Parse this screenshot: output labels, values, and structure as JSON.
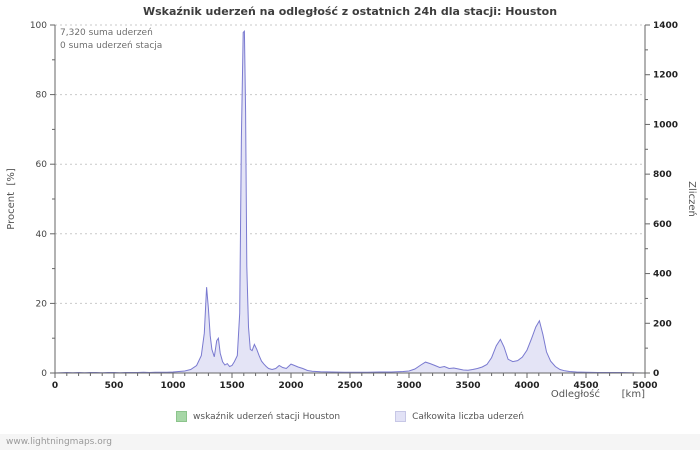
{
  "annotations": {
    "total_line": "7,320 suma uderzeń",
    "station_line": "0 suma uderzeń stacja"
  },
  "footer": {
    "watermark": "www.lightningmaps.org"
  },
  "chart_data": {
    "type": "area",
    "title": "Wskaźnik uderzeń na odległość z ostatnich 24h dla stacji: Houston",
    "xlabel": "Odległość",
    "x_unit": "[km]",
    "ylabel_left": "Procent",
    "ylabel_left_unit": "[%]",
    "ylabel_right": "Zliczeń",
    "x_range": [
      0,
      5000
    ],
    "x_ticks": [
      0,
      500,
      1000,
      1500,
      2000,
      2500,
      3000,
      3500,
      4000,
      4500,
      5000
    ],
    "x_minor_step": 100,
    "y_left_range": [
      0,
      100
    ],
    "y_left_ticks": [
      0,
      20,
      40,
      60,
      80,
      100
    ],
    "y_left_minor_step": 10,
    "y_right_range": [
      0,
      1400
    ],
    "y_right_ticks": [
      0,
      200,
      400,
      600,
      800,
      1000,
      1200,
      1400
    ],
    "y_right_minor_step": 100,
    "grid": "horizontal-dashed",
    "legend_position": "bottom",
    "series": [
      {
        "id": "station",
        "name": "wskaźnik uderzeń stacji Houston",
        "axis": "left",
        "color": "#8fcb8f",
        "swatch": "#a7d7a7",
        "swatch_border": "#8cc48c",
        "points": [
          [
            0,
            0
          ],
          [
            5000,
            0
          ]
        ]
      },
      {
        "id": "total",
        "name": "Całkowita liczba uderzeń",
        "axis": "right",
        "color": "#7a7ad0",
        "fill": "#e4e4f6",
        "swatch": "#e2e2f6",
        "swatch_border": "#c7c7e6",
        "points": [
          [
            0,
            0
          ],
          [
            50,
            1
          ],
          [
            100,
            2
          ],
          [
            150,
            1
          ],
          [
            200,
            2
          ],
          [
            250,
            1
          ],
          [
            300,
            2
          ],
          [
            350,
            2
          ],
          [
            400,
            1
          ],
          [
            450,
            2
          ],
          [
            500,
            2
          ],
          [
            550,
            1
          ],
          [
            600,
            2
          ],
          [
            650,
            2
          ],
          [
            700,
            2
          ],
          [
            750,
            3
          ],
          [
            800,
            2
          ],
          [
            850,
            3
          ],
          [
            900,
            3
          ],
          [
            950,
            3
          ],
          [
            1000,
            4
          ],
          [
            1050,
            6
          ],
          [
            1100,
            8
          ],
          [
            1150,
            14
          ],
          [
            1200,
            30
          ],
          [
            1240,
            70
          ],
          [
            1265,
            160
          ],
          [
            1285,
            345
          ],
          [
            1300,
            260
          ],
          [
            1315,
            150
          ],
          [
            1330,
            95
          ],
          [
            1350,
            65
          ],
          [
            1370,
            130
          ],
          [
            1385,
            140
          ],
          [
            1400,
            80
          ],
          [
            1420,
            45
          ],
          [
            1440,
            32
          ],
          [
            1460,
            38
          ],
          [
            1480,
            26
          ],
          [
            1500,
            30
          ],
          [
            1520,
            46
          ],
          [
            1545,
            70
          ],
          [
            1565,
            240
          ],
          [
            1580,
            950
          ],
          [
            1595,
            1370
          ],
          [
            1605,
            1375
          ],
          [
            1615,
            1050
          ],
          [
            1625,
            430
          ],
          [
            1640,
            185
          ],
          [
            1655,
            95
          ],
          [
            1670,
            90
          ],
          [
            1690,
            115
          ],
          [
            1710,
            95
          ],
          [
            1730,
            70
          ],
          [
            1750,
            48
          ],
          [
            1770,
            36
          ],
          [
            1790,
            26
          ],
          [
            1810,
            18
          ],
          [
            1840,
            14
          ],
          [
            1870,
            18
          ],
          [
            1900,
            30
          ],
          [
            1930,
            22
          ],
          [
            1960,
            18
          ],
          [
            2000,
            36
          ],
          [
            2030,
            30
          ],
          [
            2060,
            24
          ],
          [
            2100,
            18
          ],
          [
            2140,
            10
          ],
          [
            2180,
            7
          ],
          [
            2250,
            5
          ],
          [
            2350,
            4
          ],
          [
            2450,
            3
          ],
          [
            2550,
            3
          ],
          [
            2650,
            3
          ],
          [
            2750,
            4
          ],
          [
            2850,
            4
          ],
          [
            2950,
            6
          ],
          [
            3000,
            8
          ],
          [
            3050,
            16
          ],
          [
            3100,
            32
          ],
          [
            3140,
            44
          ],
          [
            3180,
            38
          ],
          [
            3220,
            30
          ],
          [
            3260,
            22
          ],
          [
            3300,
            26
          ],
          [
            3340,
            18
          ],
          [
            3380,
            20
          ],
          [
            3420,
            16
          ],
          [
            3460,
            12
          ],
          [
            3500,
            11
          ],
          [
            3540,
            14
          ],
          [
            3580,
            18
          ],
          [
            3620,
            24
          ],
          [
            3660,
            34
          ],
          [
            3700,
            62
          ],
          [
            3740,
            110
          ],
          [
            3775,
            135
          ],
          [
            3805,
            105
          ],
          [
            3840,
            55
          ],
          [
            3880,
            46
          ],
          [
            3920,
            50
          ],
          [
            3960,
            64
          ],
          [
            4000,
            92
          ],
          [
            4040,
            140
          ],
          [
            4075,
            185
          ],
          [
            4105,
            210
          ],
          [
            4135,
            155
          ],
          [
            4165,
            85
          ],
          [
            4200,
            48
          ],
          [
            4240,
            26
          ],
          [
            4280,
            14
          ],
          [
            4320,
            9
          ],
          [
            4360,
            6
          ],
          [
            4420,
            4
          ],
          [
            4500,
            3
          ],
          [
            4600,
            2
          ],
          [
            4700,
            2
          ],
          [
            4800,
            2
          ],
          [
            4900,
            1
          ],
          [
            5000,
            0
          ]
        ]
      }
    ]
  }
}
